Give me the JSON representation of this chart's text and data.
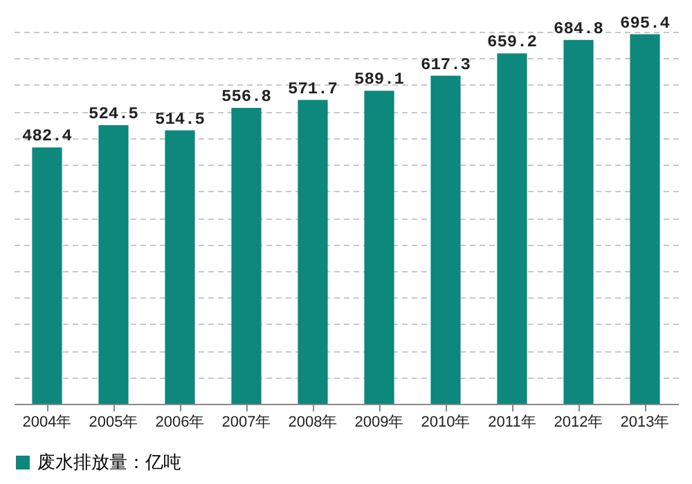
{
  "chart_data": {
    "type": "bar",
    "categories": [
      "2004年",
      "2005年",
      "2006年",
      "2007年",
      "2008年",
      "2009年",
      "2010年",
      "2011年",
      "2012年",
      "2013年"
    ],
    "series": [
      {
        "name": "废水排放量：亿吨",
        "color": "#0e877d",
        "values": [
          482.4,
          524.5,
          514.5,
          556.8,
          571.7,
          589.1,
          617.3,
          659.2,
          684.8,
          695.4
        ]
      }
    ],
    "grid": "y",
    "data_labels": true,
    "legend": "bottom",
    "tick_labels": "x"
  }
}
